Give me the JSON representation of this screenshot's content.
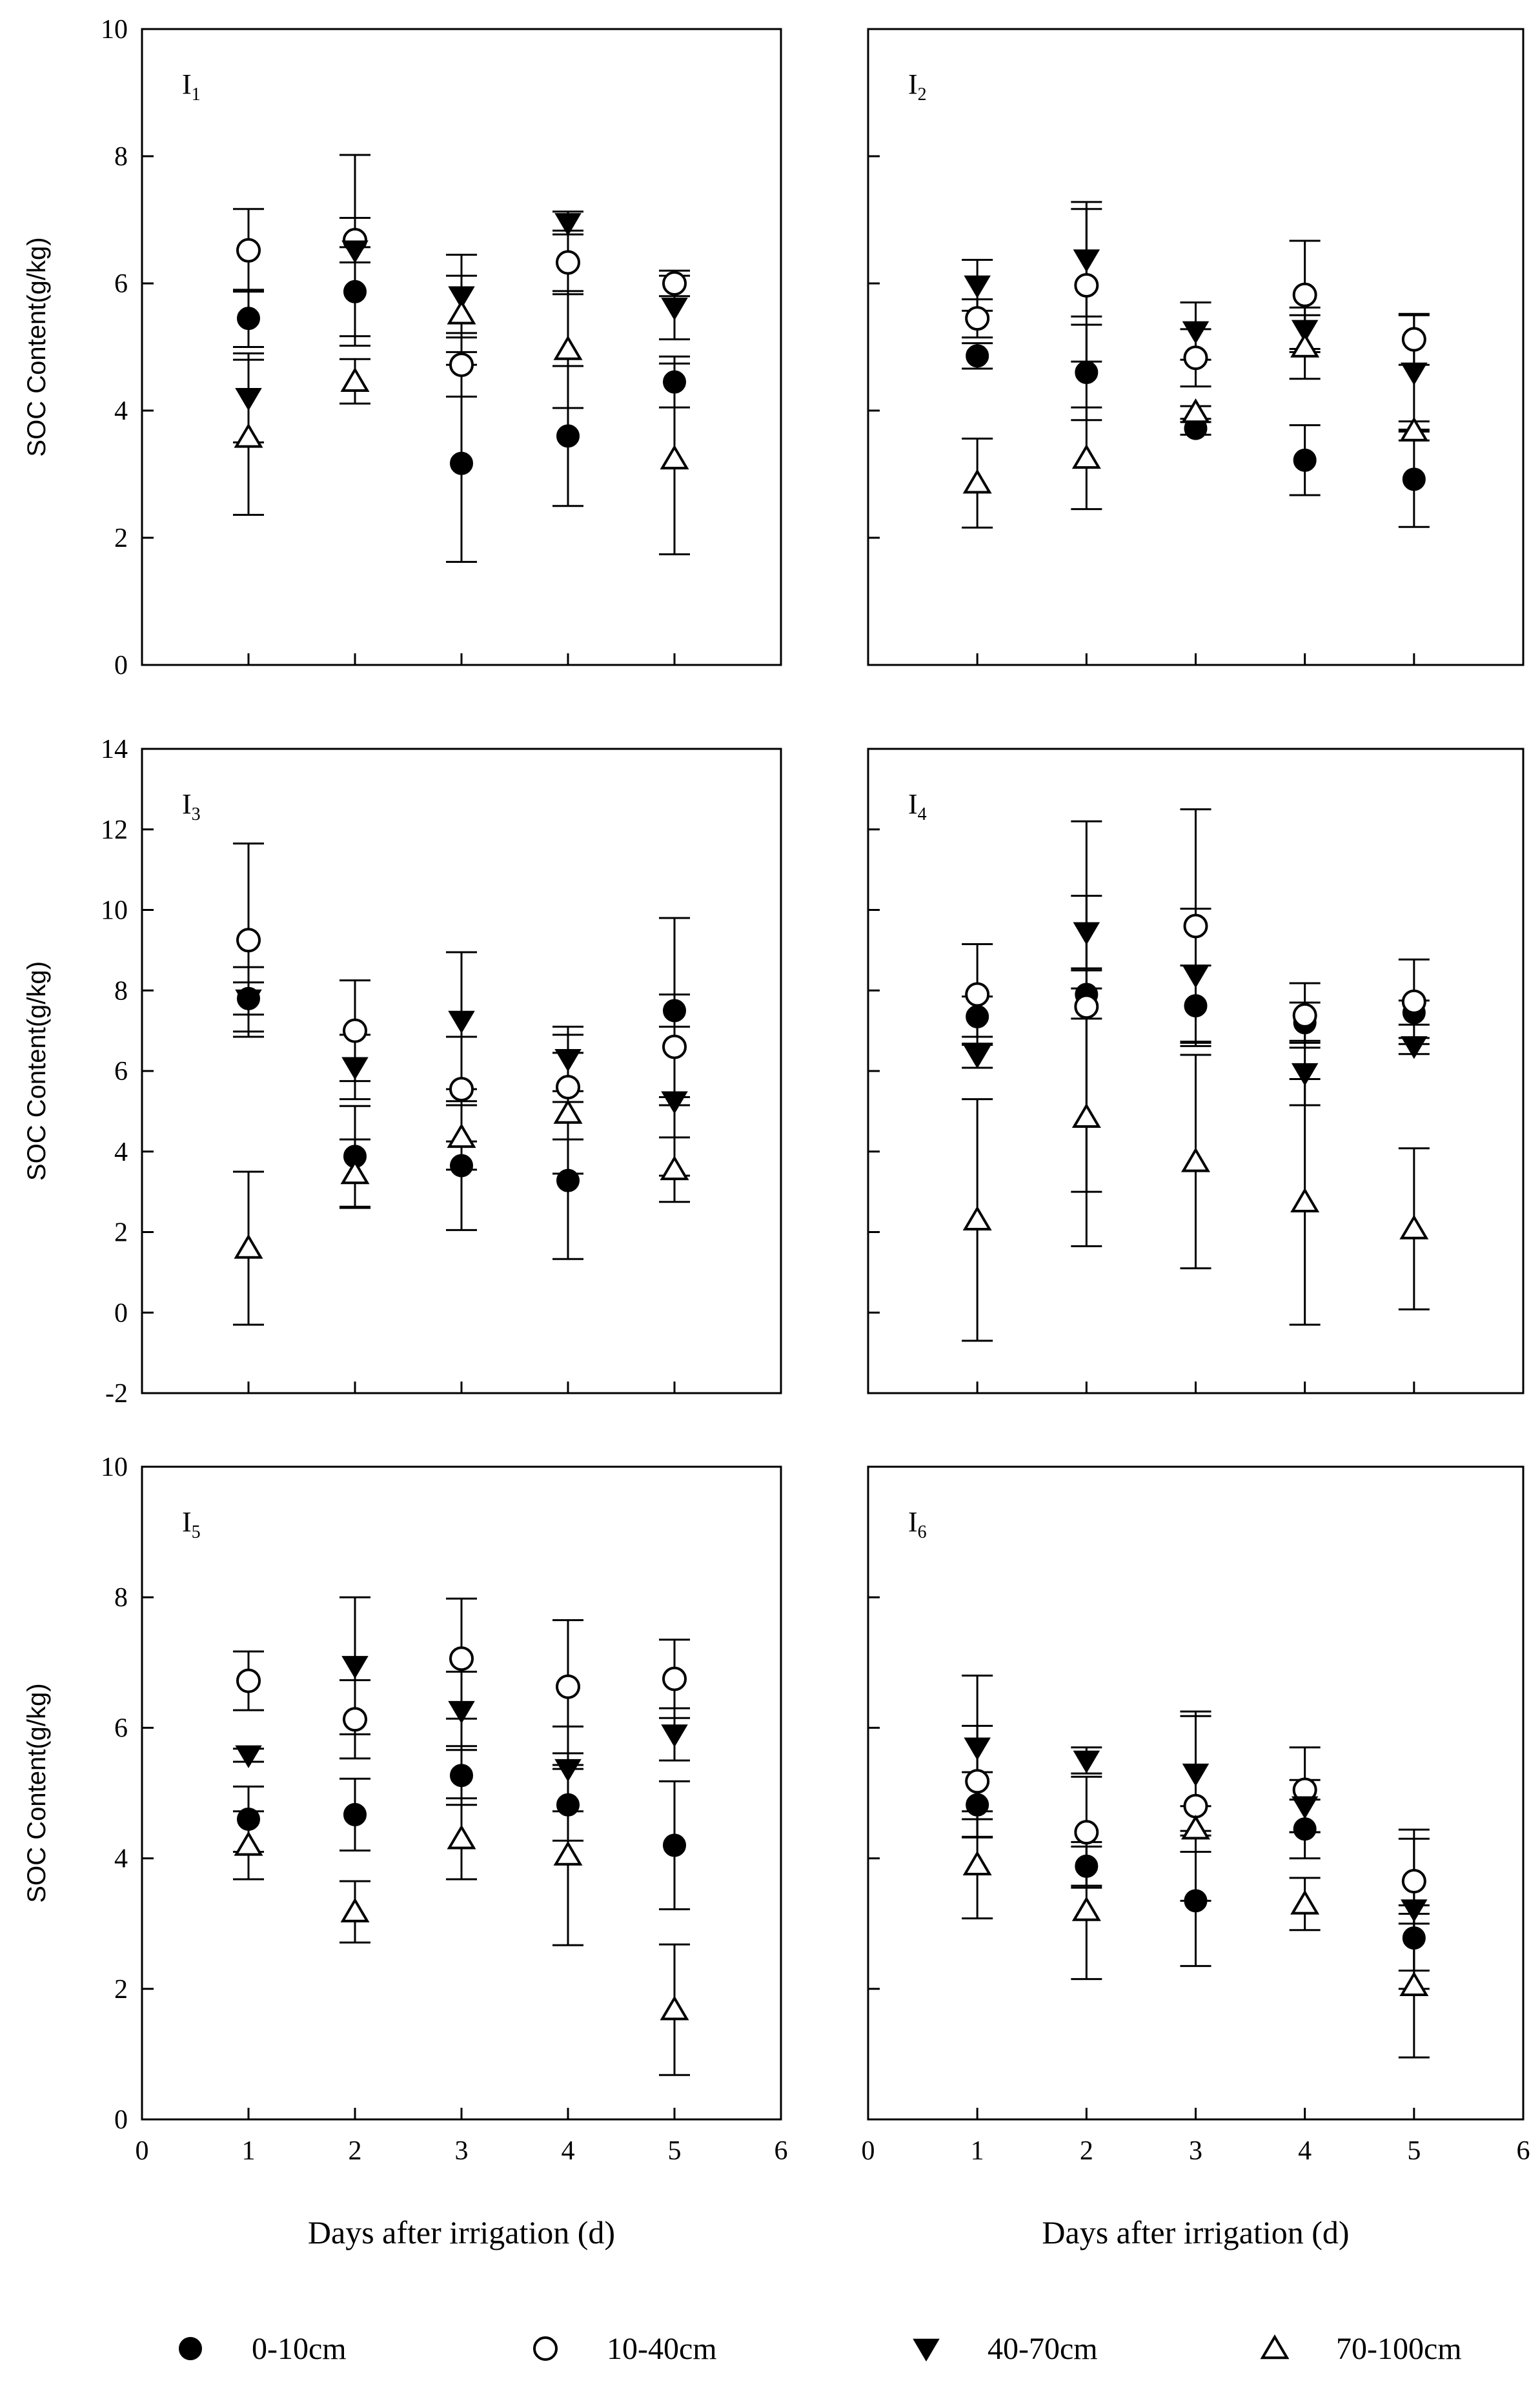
{
  "chart_data": {
    "type": "scatter",
    "xlabel": "Days after irrigation (d)",
    "ylabel": "SOC Content(g/kg)",
    "x_ticks": [
      0,
      1,
      2,
      3,
      4,
      5,
      6
    ],
    "x": [
      1,
      2,
      3,
      4,
      5
    ],
    "xlim": [
      0,
      6
    ],
    "legend": {
      "placement": "bottom",
      "entries": [
        {
          "label": "0-10cm",
          "marker": "filled-circle"
        },
        {
          "label": "10-40cm",
          "marker": "open-circle"
        },
        {
          "label": "40-70cm",
          "marker": "filled-triangle-down"
        },
        {
          "label": "70-100cm",
          "marker": "open-triangle-up"
        }
      ]
    },
    "rows": [
      {
        "ylim": [
          0,
          10
        ],
        "y_ticks": [
          0,
          2,
          4,
          6,
          8,
          10
        ]
      },
      {
        "ylim": [
          -2,
          14
        ],
        "y_ticks": [
          -2,
          0,
          2,
          4,
          6,
          8,
          10,
          12,
          14
        ]
      },
      {
        "ylim": [
          0,
          10
        ],
        "y_ticks": [
          0,
          2,
          4,
          6,
          8,
          10
        ]
      }
    ],
    "panels": [
      {
        "label": "I",
        "subscript": "1",
        "row": 0,
        "col": 0,
        "series": [
          {
            "name": "0-10cm",
            "values": [
              5.45,
              5.87,
              3.17,
              3.6,
              4.45
            ],
            "err": [
              0.45,
              0.7,
              1.55,
              1.1,
              0.4
            ]
          },
          {
            "name": "10-40cm",
            "values": [
              6.52,
              6.68,
              4.72,
              6.33,
              6.0
            ],
            "err": [
              0.65,
              0.35,
              0.5,
              0.5,
              0.2
            ]
          },
          {
            "name": "40-70cm",
            "values": [
              4.2,
              6.52,
              5.8,
              6.95,
              5.62
            ],
            "err": [
              0.7,
              1.5,
              0.65,
              0.18,
              0.5
            ]
          },
          {
            "name": "70-100cm",
            "values": [
              3.58,
              4.46,
              5.52,
              4.96,
              3.24
            ],
            "err": [
              1.22,
              0.35,
              0.6,
              0.92,
              1.5
            ]
          }
        ]
      },
      {
        "label": "I",
        "subscript": "2",
        "row": 0,
        "col": 1,
        "series": [
          {
            "name": "0-10cm",
            "values": [
              4.86,
              4.6,
              3.72,
              3.22,
              2.92
            ],
            "err": [
              0.2,
              0.75,
              0.1,
              0.55,
              0.75
            ]
          },
          {
            "name": "10-40cm",
            "values": [
              5.45,
              5.97,
              4.83,
              5.82,
              5.12
            ],
            "err": [
              0.3,
              1.2,
              0.45,
              0.85,
              0.4
            ]
          },
          {
            "name": "40-70cm",
            "values": [
              5.97,
              6.38,
              5.25,
              5.27,
              4.6
            ],
            "err": [
              0.4,
              0.9,
              0.45,
              0.35,
              0.9
            ]
          },
          {
            "name": "70-100cm",
            "values": [
              2.86,
              3.25,
              3.97,
              5.0,
              3.68
            ],
            "err": [
              0.7,
              0.8,
              0.1,
              0.5,
              0.15
            ]
          }
        ]
      },
      {
        "label": "I",
        "subscript": "3",
        "row": 1,
        "col": 0,
        "series": [
          {
            "name": "0-10cm",
            "values": [
              7.8,
              3.88,
              3.65,
              3.28,
              7.5
            ],
            "err": [
              0.4,
              1.25,
              1.6,
              1.95,
              0.4
            ]
          },
          {
            "name": "10-40cm",
            "values": [
              9.25,
              7.0,
              5.55,
              5.6,
              6.6
            ],
            "err": [
              2.4,
              1.25,
              1.3,
              1.3,
              3.2
            ]
          },
          {
            "name": "40-70cm",
            "values": [
              7.78,
              6.1,
              7.25,
              6.3,
              5.25
            ],
            "err": [
              0.8,
              0.8,
              1.7,
              0.8,
              0.1
            ]
          },
          {
            "name": "70-100cm",
            "values": [
              1.6,
              3.45,
              4.35,
              4.95,
              3.55
            ],
            "err": [
              1.9,
              0.85,
              0.8,
              1.5,
              0.8
            ]
          }
        ]
      },
      {
        "label": "I",
        "subscript": "4",
        "row": 1,
        "col": 1,
        "series": [
          {
            "name": "0-10cm",
            "values": [
              7.35,
              7.9,
              7.62,
              7.2,
              7.45
            ],
            "err": [
              0.5,
              0.6,
              1.0,
              0.5,
              0.3
            ]
          },
          {
            "name": "10-40cm",
            "values": [
              7.9,
              7.6,
              9.6,
              7.38,
              7.72
            ],
            "err": [
              1.25,
              4.6,
              2.9,
              0.8,
              1.05
            ]
          },
          {
            "name": "40-70cm",
            "values": [
              6.38,
              9.45,
              8.38,
              5.95,
              6.62
            ],
            "err": [
              0.3,
              0.9,
              1.65,
              0.8,
              0.2
            ]
          },
          {
            "name": "70-100cm",
            "values": [
              2.3,
              4.85,
              3.75,
              2.75,
              2.08
            ],
            "err": [
              3.0,
              3.2,
              2.65,
              3.05,
              2.0
            ]
          }
        ]
      },
      {
        "label": "I",
        "subscript": "5",
        "row": 2,
        "col": 0,
        "series": [
          {
            "name": "0-10cm",
            "values": [
              4.6,
              4.67,
              5.27,
              4.82,
              4.2
            ],
            "err": [
              0.5,
              0.55,
              0.45,
              0.55,
              0.98
            ]
          },
          {
            "name": "10-40cm",
            "values": [
              6.72,
              6.13,
              7.06,
              6.63,
              6.75
            ],
            "err": [
              0.45,
              0.6,
              0.92,
              1.02,
              0.6
            ]
          },
          {
            "name": "40-70cm",
            "values": [
              5.58,
              6.95,
              6.26,
              5.37,
              5.9
            ],
            "err": [
              0.1,
              1.05,
              0.6,
              0.65,
              0.4
            ]
          },
          {
            "name": "70-100cm",
            "values": [
              4.2,
              3.18,
              4.3,
              4.05,
              1.68
            ],
            "err": [
              0.52,
              0.47,
              0.62,
              1.38,
              1.0
            ]
          }
        ]
      },
      {
        "label": "I",
        "subscript": "6",
        "row": 2,
        "col": 1,
        "series": [
          {
            "name": "0-10cm",
            "values": [
              4.82,
              3.88,
              3.35,
              4.45,
              2.78
            ],
            "err": [
              0.5,
              0.3,
              1.0,
              0.45,
              0.5
            ]
          },
          {
            "name": "10-40cm",
            "values": [
              5.18,
              4.4,
              4.8,
              5.05,
              3.65
            ],
            "err": [
              0.85,
              0.85,
              1.45,
              0.65,
              0.65
            ]
          },
          {
            "name": "40-70cm",
            "values": [
              5.7,
              5.5,
              5.3,
              4.8,
              3.22
            ],
            "err": [
              1.1,
              0.2,
              0.88,
              0.4,
              1.22
            ]
          },
          {
            "name": "70-100cm",
            "values": [
              3.9,
              3.2,
              4.45,
              3.3,
              2.05
            ],
            "err": [
              0.82,
              1.05,
              0.35,
              0.4,
              1.1
            ]
          }
        ]
      }
    ]
  }
}
